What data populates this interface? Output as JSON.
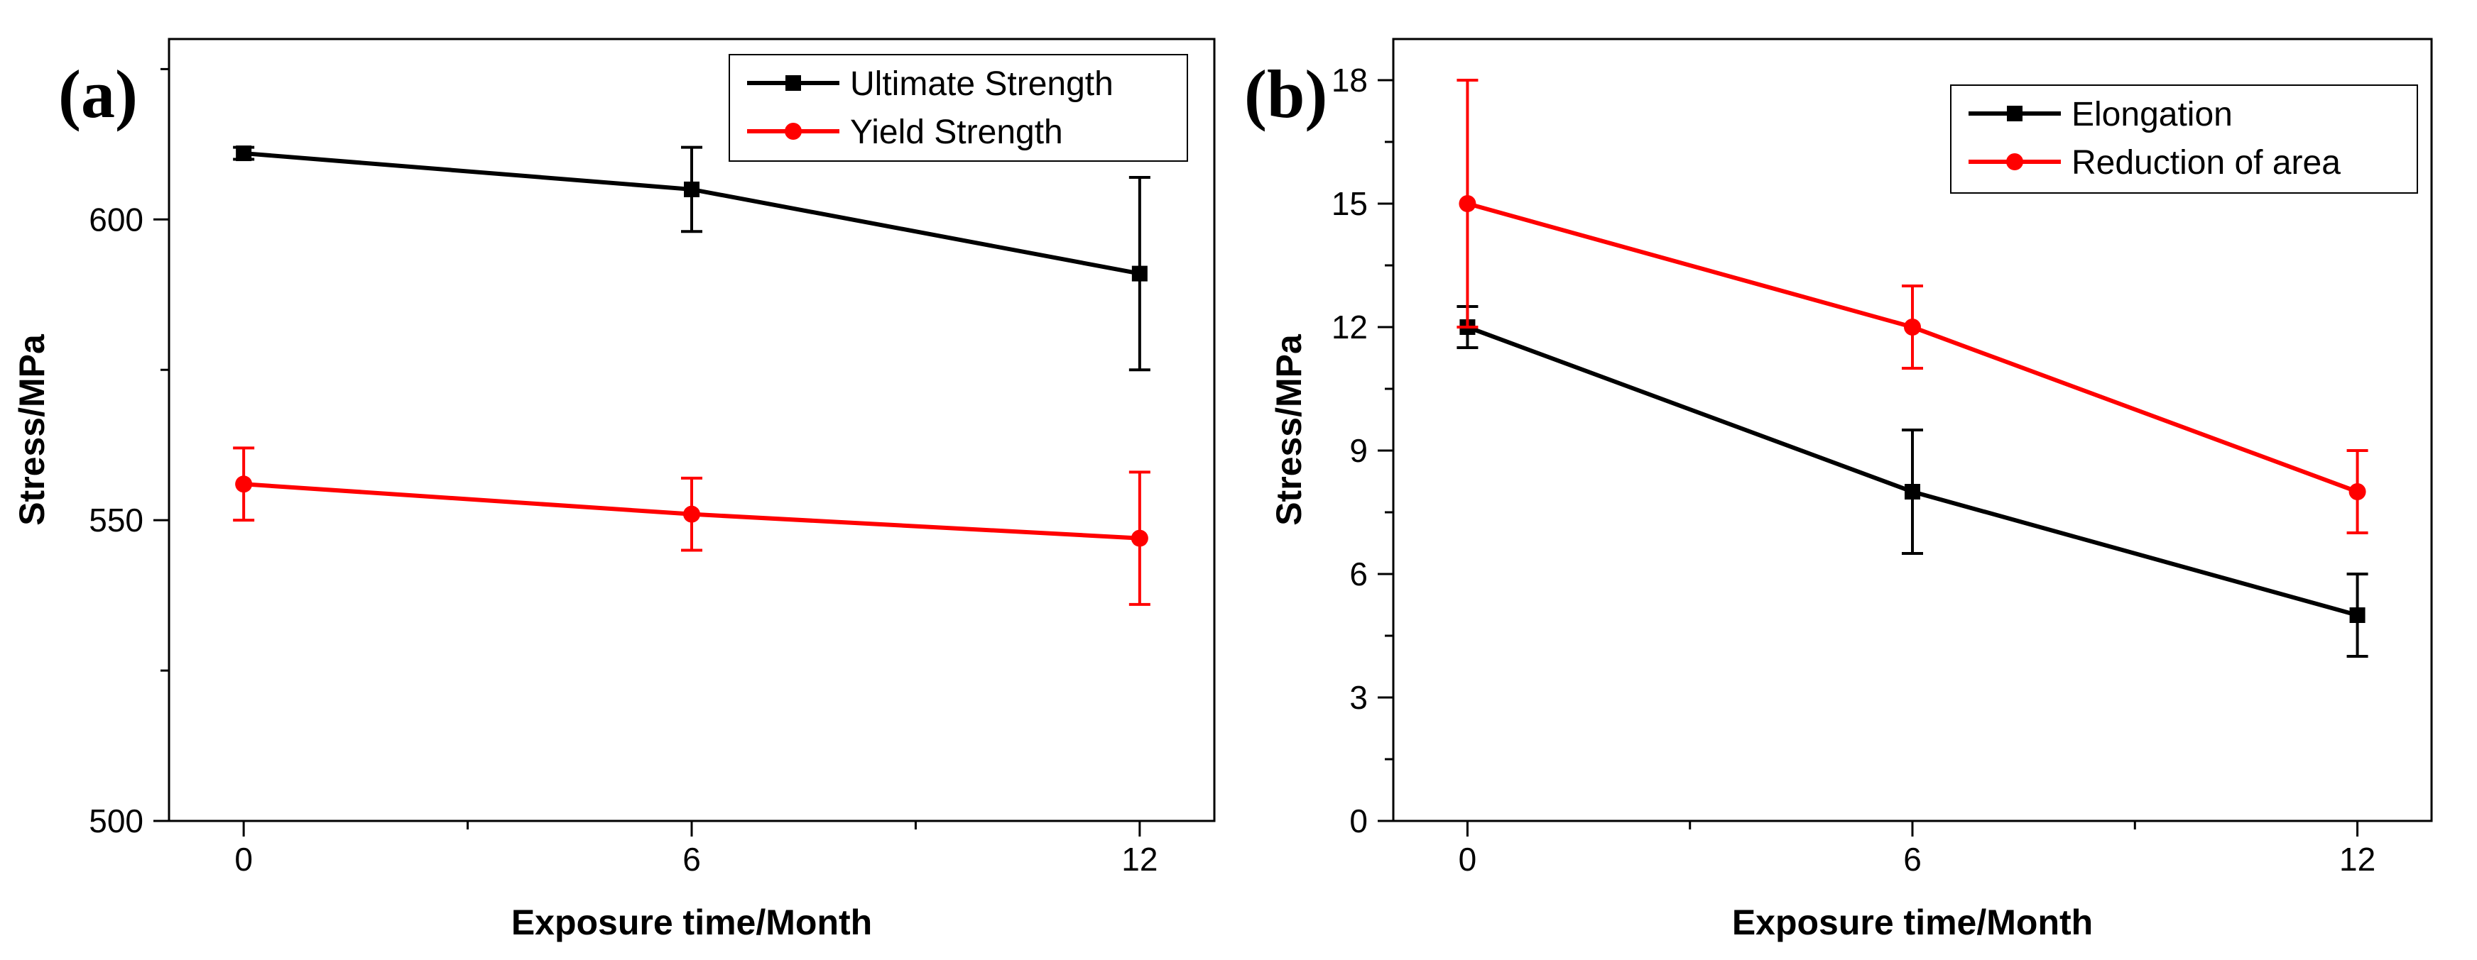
{
  "chart_data": [
    {
      "type": "line",
      "panel_label": "(a)",
      "xlabel": "Exposure time/Month",
      "ylabel": "Stress/MPa",
      "x": [
        0,
        6,
        12
      ],
      "xlim": [
        -1,
        13
      ],
      "ylim": [
        500,
        630
      ],
      "xticks": [
        0,
        6,
        12
      ],
      "yticks": [
        500,
        550,
        600
      ],
      "legend_position": "top-right",
      "series": [
        {
          "name": "Ultimate Strength",
          "color": "#000000",
          "marker": "square",
          "values": [
            611,
            605,
            591
          ],
          "errors": [
            1,
            7,
            16
          ]
        },
        {
          "name": "Yield Strength",
          "color": "#ff0000",
          "marker": "circle",
          "values": [
            556,
            551,
            547
          ],
          "errors": [
            6,
            6,
            11
          ]
        }
      ]
    },
    {
      "type": "line",
      "panel_label": "(b)",
      "xlabel": "Exposure time/Month",
      "ylabel": "Stress/MPa",
      "x": [
        0,
        6,
        12
      ],
      "xlim": [
        -1,
        13
      ],
      "ylim": [
        0,
        19
      ],
      "xticks": [
        0,
        6,
        12
      ],
      "yticks": [
        0,
        3,
        6,
        9,
        12,
        15,
        18
      ],
      "legend_position": "top-right",
      "series": [
        {
          "name": "Elongation",
          "color": "#000000",
          "marker": "square",
          "values": [
            12,
            8,
            5
          ],
          "errors": [
            0.5,
            1.5,
            1
          ]
        },
        {
          "name": "Reduction of area",
          "color": "#ff0000",
          "marker": "circle",
          "values": [
            15,
            12,
            8
          ],
          "errors": [
            3,
            1,
            1
          ]
        }
      ]
    }
  ]
}
